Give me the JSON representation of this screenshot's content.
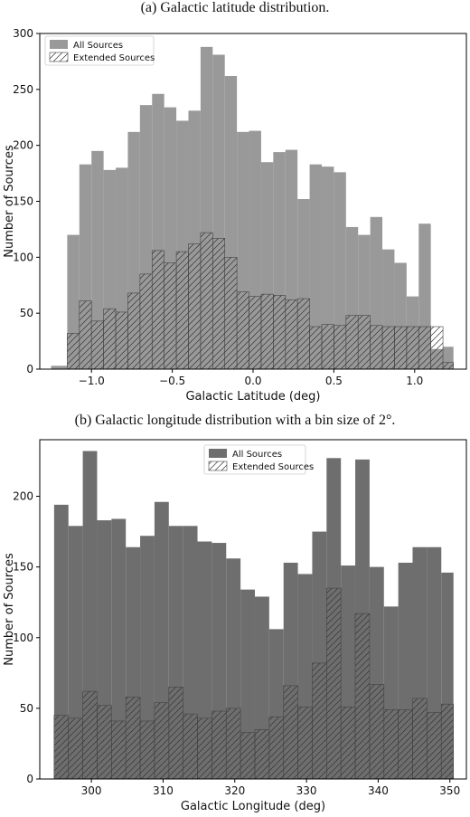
{
  "chart_data": [
    {
      "type": "bar",
      "caption": "(a) Galactic latitude distribution.",
      "xlabel": "Galactic Latitude  (deg)",
      "ylabel": "Number of Sources",
      "xlim": [
        -1.32,
        1.32
      ],
      "ylim": [
        0,
        300
      ],
      "xticks": [
        -1.0,
        -0.5,
        0.0,
        0.5,
        1.0
      ],
      "xtick_labels": [
        "−1.0",
        "−0.5",
        "0.0",
        "0.5",
        "1.0"
      ],
      "yticks": [
        0,
        50,
        100,
        150,
        200,
        250,
        300
      ],
      "legend_position": "top-left",
      "bin_edges": [
        -1.25,
        -1.15,
        -1.075,
        -1.0,
        -0.925,
        -0.85,
        -0.775,
        -0.7,
        -0.625,
        -0.55,
        -0.475,
        -0.4,
        -0.325,
        -0.25,
        -0.175,
        -0.1,
        -0.025,
        0.05,
        0.125,
        0.2,
        0.275,
        0.35,
        0.425,
        0.5,
        0.575,
        0.65,
        0.725,
        0.8,
        0.875,
        0.95,
        1.025,
        1.1,
        1.175,
        1.24
      ],
      "series": [
        {
          "name": "All Sources",
          "color": "#999999",
          "values": [
            3,
            120,
            183,
            195,
            178,
            180,
            212,
            236,
            246,
            234,
            222,
            231,
            288,
            281,
            262,
            212,
            213,
            185,
            194,
            196,
            152,
            183,
            181,
            176,
            127,
            120,
            136,
            107,
            95,
            65,
            130,
            18,
            20
          ]
        },
        {
          "name": "Extended Sources",
          "hatch": true,
          "values": [
            0,
            32,
            61,
            43,
            54,
            51,
            68,
            85,
            106,
            95,
            105,
            112,
            122,
            117,
            100,
            69,
            65,
            67,
            66,
            62,
            63,
            38,
            40,
            39,
            48,
            48,
            39,
            38,
            38,
            38,
            38,
            38,
            6
          ]
        }
      ]
    },
    {
      "type": "bar",
      "caption": "(b) Galactic longitude distribution with a bin size of 2°.",
      "xlabel": "Galactic Longitude  (deg)",
      "ylabel": "Number of Sources",
      "xlim": [
        292.8,
        352.3
      ],
      "ylim": [
        0,
        240
      ],
      "xticks": [
        300,
        310,
        320,
        330,
        340,
        350
      ],
      "yticks": [
        0,
        50,
        100,
        150,
        200
      ],
      "legend_position": "top-center",
      "bin_edges": [
        294.8,
        296.8,
        298.8,
        300.8,
        302.8,
        304.8,
        306.8,
        308.8,
        310.8,
        312.8,
        314.8,
        316.8,
        318.8,
        320.8,
        322.8,
        324.8,
        326.8,
        328.8,
        330.8,
        332.8,
        334.8,
        336.8,
        338.8,
        340.8,
        342.8,
        344.8,
        346.8,
        348.8,
        350.5
      ],
      "series": [
        {
          "name": "All Sources",
          "color": "#6e6e6e",
          "values": [
            194,
            179,
            232,
            183,
            184,
            164,
            172,
            196,
            179,
            179,
            168,
            167,
            156,
            134,
            129,
            106,
            153,
            145,
            175,
            227,
            151,
            226,
            150,
            122,
            153,
            164,
            164,
            146
          ]
        },
        {
          "name": "Extended Sources",
          "hatch": true,
          "values": [
            45,
            43,
            62,
            52,
            41,
            58,
            41,
            54,
            65,
            46,
            43,
            48,
            50,
            33,
            35,
            44,
            66,
            51,
            82,
            135,
            51,
            117,
            67,
            49,
            49,
            57,
            47,
            53
          ]
        }
      ]
    }
  ]
}
